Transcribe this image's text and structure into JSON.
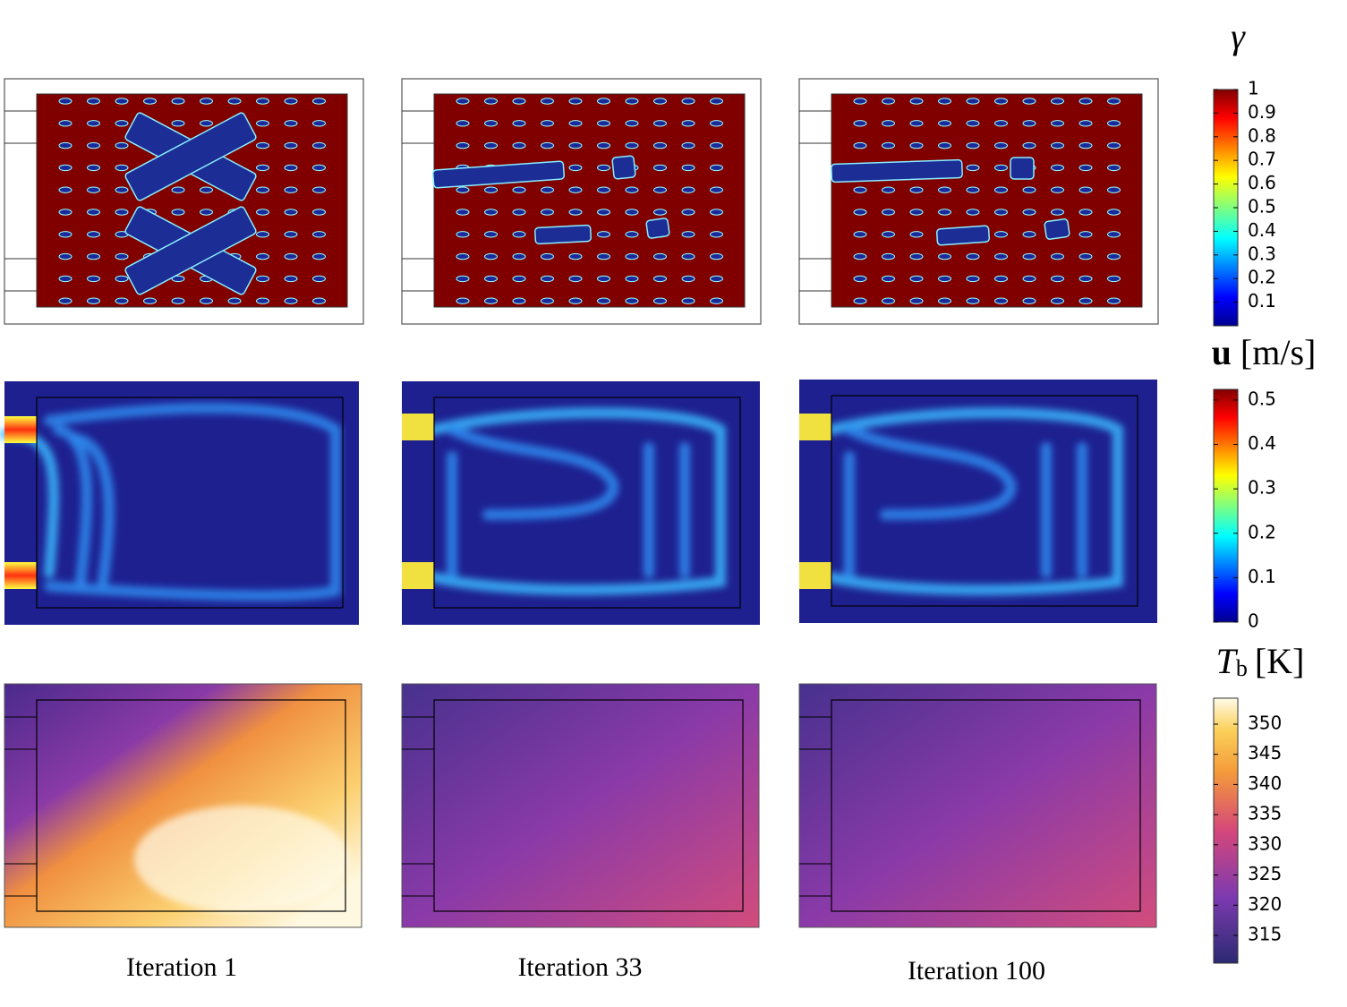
{
  "columns": [
    {
      "label": "Iteration 1"
    },
    {
      "label": "Iteration 33"
    },
    {
      "label": "Iteration 100"
    }
  ],
  "colorbars": [
    {
      "title": "γ",
      "lim": [
        0,
        1
      ],
      "ticks": [
        1,
        0.9,
        0.8,
        0.7,
        0.6,
        0.5,
        0.4,
        0.3,
        0.2,
        0.1
      ]
    },
    {
      "title": "u",
      "unit": "[m/s]",
      "lim": [
        0,
        0.524
      ],
      "ticks": [
        0.5,
        0.4,
        0.3,
        0.2,
        0.1,
        0
      ]
    },
    {
      "title": "T",
      "subscript": "b",
      "unit": "[K]",
      "lim": [
        310.4,
        354.3
      ],
      "ticks": [
        350,
        345,
        340,
        335,
        330,
        325,
        320,
        315
      ]
    }
  ]
}
